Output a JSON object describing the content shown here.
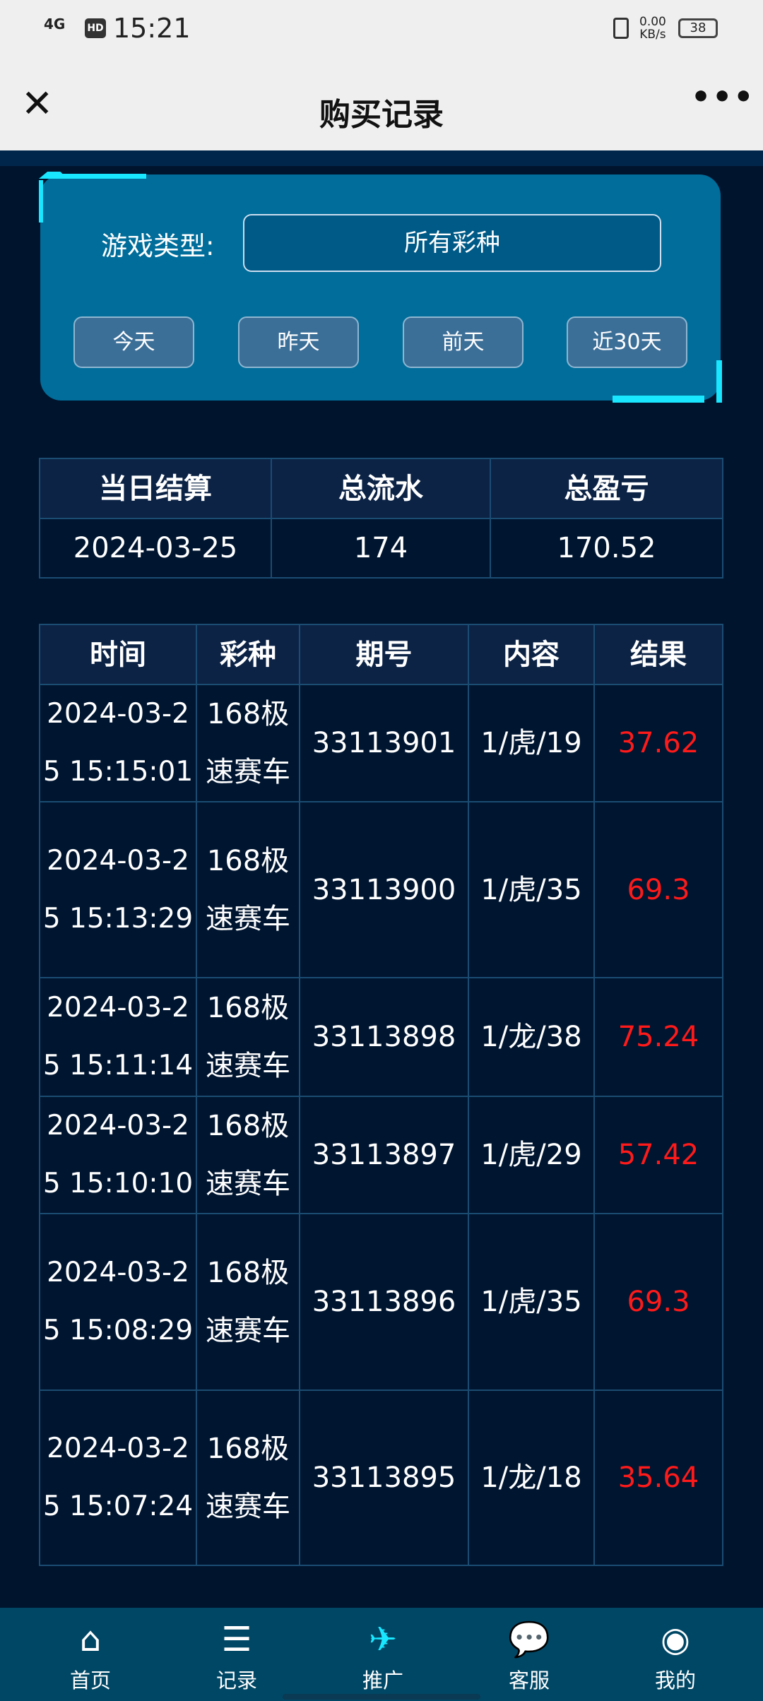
{
  "status": {
    "signal": "4G",
    "hd": "HD",
    "time": "15:21",
    "speed": "0.00",
    "speed_unit": "KB/s",
    "battery": "38"
  },
  "header": {
    "title": "购买记录",
    "close_icon": "close-icon",
    "more_icon": "more-icon"
  },
  "filter": {
    "label": "游戏类型:",
    "select_value": "所有彩种",
    "buttons": [
      "今天",
      "昨天",
      "前天",
      "近30天"
    ]
  },
  "summary": {
    "headers": [
      "当日结算",
      "总流水",
      "总盈亏"
    ],
    "row": [
      "2024-03-25",
      "174",
      "170.52"
    ]
  },
  "records": {
    "headers": [
      "时间",
      "彩种",
      "期号",
      "内容",
      "结果"
    ],
    "rows": [
      [
        "2024-03-25 15:15:01",
        "168极速赛车",
        "33113901",
        "1/虎/19",
        "37.62"
      ],
      [
        "2024-03-25 15:13:29",
        "168极速赛车",
        "33113900",
        "1/虎/35",
        "69.3"
      ],
      [
        "2024-03-25 15:11:14",
        "168极速赛车",
        "33113898",
        "1/龙/38",
        "75.24"
      ],
      [
        "2024-03-25 15:10:10",
        "168极速赛车",
        "33113897",
        "1/虎/29",
        "57.42"
      ],
      [
        "2024-03-25 15:08:29",
        "168极速赛车",
        "33113896",
        "1/虎/35",
        "69.3"
      ],
      [
        "2024-03-25 15:07:24",
        "168极速赛车",
        "33113895",
        "1/龙/18",
        "35.64"
      ]
    ]
  },
  "nav": [
    {
      "label": "首页",
      "icon": "home-icon"
    },
    {
      "label": "记录",
      "icon": "record-icon"
    },
    {
      "label": "推广",
      "icon": "paper-plane-icon",
      "active": true
    },
    {
      "label": "客服",
      "icon": "chat-icon"
    },
    {
      "label": "我的",
      "icon": "user-icon"
    }
  ],
  "colors": {
    "accent": "#19e6ff",
    "result": "#ff1a1a",
    "panel": "#006d9a",
    "background": "#00142e"
  }
}
